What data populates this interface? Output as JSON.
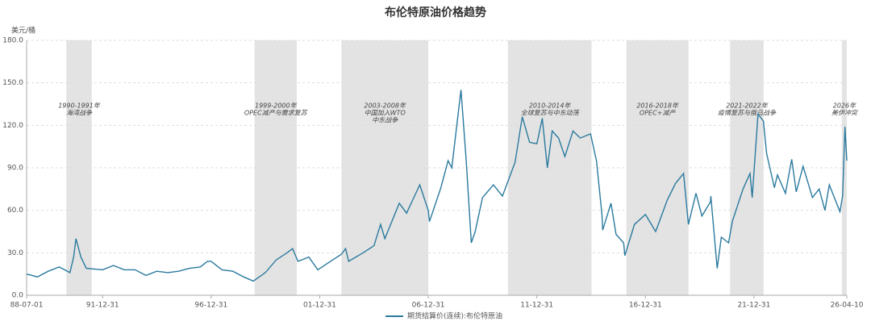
{
  "chart_data": {
    "type": "line",
    "title": "布伦特原油价格趋势",
    "y_label": "美元/桶",
    "x": [
      "88-07-01",
      "88-12-31",
      "89-06-30",
      "89-12-31",
      "90-06-30",
      "90-08-31",
      "90-10-10",
      "90-12-31",
      "91-03-31",
      "91-12-31",
      "92-06-30",
      "92-12-31",
      "93-06-30",
      "93-12-31",
      "94-06-30",
      "94-12-31",
      "95-06-30",
      "95-12-31",
      "96-06-30",
      "96-10-31",
      "96-12-31",
      "97-06-30",
      "97-12-31",
      "98-06-30",
      "98-12-10",
      "99-06-30",
      "99-12-31",
      "00-06-30",
      "00-09-30",
      "00-12-31",
      "01-06-30",
      "01-11-30",
      "02-06-30",
      "02-12-31",
      "03-03-10",
      "03-04-30",
      "03-12-31",
      "04-06-30",
      "04-10-20",
      "04-12-31",
      "05-08-31",
      "05-12-31",
      "06-08-10",
      "06-12-31",
      "07-01-20",
      "07-07-31",
      "07-11-30",
      "08-01-31",
      "08-07-03",
      "08-09-30",
      "08-12-24",
      "09-02-28",
      "09-06-30",
      "09-12-31",
      "10-05-31",
      "10-12-31",
      "11-04-30",
      "11-08-31",
      "11-12-31",
      "12-03-31",
      "12-06-25",
      "12-09-15",
      "12-12-31",
      "13-04-15",
      "13-08-31",
      "13-12-31",
      "14-06-20",
      "14-09-30",
      "14-12-31",
      "15-01-13",
      "15-05-31",
      "15-08-24",
      "15-12-31",
      "16-01-20",
      "16-06-30",
      "16-12-31",
      "17-06-21",
      "17-12-31",
      "18-05-20",
      "18-10-03",
      "18-12-24",
      "19-04-30",
      "19-08-07",
      "19-12-31",
      "20-01-06",
      "20-04-21",
      "20-06-30",
      "20-10-30",
      "20-12-31",
      "21-06-30",
      "21-10-25",
      "21-12-01",
      "22-03-08",
      "22-06-08",
      "22-07-31",
      "22-12-09",
      "23-01-31",
      "23-06-12",
      "23-09-27",
      "23-12-12",
      "24-04-05",
      "24-09-10",
      "24-12-31",
      "25-04-08",
      "25-06-20",
      "25-12-16",
      "26-01-31",
      "26-03-09",
      "26-04-10"
    ],
    "series": [
      {
        "name": "期货结算价(连续):布伦特原油",
        "color": "#2a7a9e",
        "values": [
          15,
          13,
          17,
          20,
          16,
          27,
          40,
          27,
          19,
          18,
          21,
          18,
          18,
          14,
          17,
          16,
          17,
          19,
          20,
          24,
          24,
          18,
          17,
          13,
          10,
          16,
          25,
          30,
          33,
          24,
          27,
          18,
          24,
          29,
          33,
          24,
          30,
          35,
          50,
          40,
          65,
          58,
          78,
          60,
          52,
          76,
          95,
          90,
          145,
          95,
          37,
          45,
          69,
          78,
          70,
          94,
          126,
          108,
          107,
          125,
          90,
          116,
          111,
          98,
          116,
          111,
          114,
          95,
          57,
          46,
          65,
          43,
          37,
          28,
          50,
          57,
          45,
          67,
          79,
          86,
          50,
          72,
          56,
          66,
          70,
          19,
          41,
          37,
          52,
          75,
          86,
          69,
          128,
          123,
          100,
          76,
          85,
          72,
          96,
          73,
          91,
          69,
          75,
          60,
          78,
          59,
          70,
          119,
          95
        ]
      }
    ],
    "xlim": [
      "88-07-01",
      "26-04-10"
    ],
    "xticks": [
      "88-07-01",
      "91-12-31",
      "96-12-31",
      "01-12-31",
      "06-12-31",
      "11-12-31",
      "16-12-31",
      "21-12-31",
      "26-04-10"
    ],
    "ylim": [
      0,
      180
    ],
    "yticks": [
      {
        "value": 0,
        "label": "0.0"
      },
      {
        "value": 30,
        "label": "30.0"
      },
      {
        "value": 60,
        "label": "60.0"
      },
      {
        "value": 90,
        "label": "90.0"
      },
      {
        "value": 120,
        "label": "120.0"
      },
      {
        "value": 150,
        "label": "150.0"
      },
      {
        "value": 180,
        "label": "180.0"
      }
    ],
    "grid": true,
    "periods": [
      {
        "start": "90-04-30",
        "end": "91-07-01",
        "label": [
          "1990-1991年",
          "海湾战争"
        ]
      },
      {
        "start": "98-12-31",
        "end": "00-12-10",
        "label": [
          "1999-2000年",
          "OPEC减产与需求复苏"
        ]
      },
      {
        "start": "03-01-01",
        "end": "07-01-01",
        "label": [
          "2003-2008年",
          "中国加入WTO",
          "中东战争"
        ]
      },
      {
        "start": "10-08-31",
        "end": "14-07-08",
        "label": [
          "2010-2014年",
          "全球复苏与中东动荡"
        ]
      },
      {
        "start": "16-02-15",
        "end": "18-12-25",
        "label": [
          "2016-2018年",
          "OPEC+减产"
        ]
      },
      {
        "start": "20-11-25",
        "end": "22-06-10",
        "label": [
          "2021-2022年",
          "疫情复苏与俄乌战争"
        ]
      },
      {
        "start": "26-01-18",
        "end": "26-04-10",
        "label": [
          "2026年",
          "美伊冲突"
        ]
      }
    ]
  }
}
